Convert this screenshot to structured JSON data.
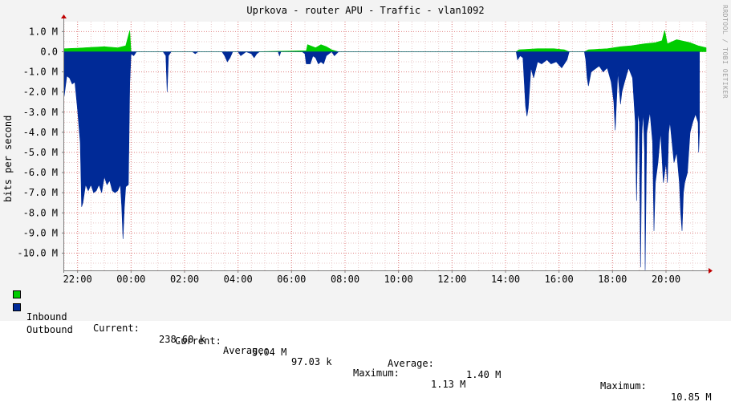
{
  "chart_data": {
    "type": "area",
    "title": "Uprkova - router APU - Traffic - vlan1092",
    "ylabel": "bits per second",
    "watermark": "RRDTOOL / TOBI OETIKER",
    "ylim": [
      -10.85,
      1.5
    ],
    "y_ticks": [
      1.0,
      0.0,
      -1.0,
      -2.0,
      -3.0,
      -4.0,
      -5.0,
      -6.0,
      -7.0,
      -8.0,
      -9.0,
      -10.0
    ],
    "y_tick_labels": [
      "1.0 M",
      "0.0",
      "-1.0 M",
      "-2.0 M",
      "-3.0 M",
      "-4.0 M",
      "-5.0 M",
      "-6.0 M",
      "-7.0 M",
      "-8.0 M",
      "-9.0 M",
      "-10.0 M"
    ],
    "xlim": [
      21.5,
      45.5
    ],
    "x_ticks": [
      22,
      24,
      26,
      28,
      30,
      32,
      34,
      36,
      38,
      40,
      42,
      44
    ],
    "x_tick_labels": [
      "22:00",
      "00:00",
      "02:00",
      "04:00",
      "06:00",
      "08:00",
      "10:00",
      "12:00",
      "14:00",
      "16:00",
      "18:00",
      "20:00"
    ],
    "grid": true,
    "series": [
      {
        "name": "Inbound",
        "color": "#00cc00",
        "points": [
          [
            21.5,
            0.15
          ],
          [
            22.0,
            0.18
          ],
          [
            22.5,
            0.22
          ],
          [
            23.0,
            0.25
          ],
          [
            23.5,
            0.2
          ],
          [
            23.8,
            0.3
          ],
          [
            23.95,
            1.05
          ],
          [
            24.0,
            0.0
          ],
          [
            28.57,
            0.0
          ],
          [
            30.55,
            0.05
          ],
          [
            30.6,
            0.35
          ],
          [
            30.9,
            0.2
          ],
          [
            31.1,
            0.35
          ],
          [
            31.3,
            0.25
          ],
          [
            31.5,
            0.1
          ],
          [
            31.75,
            0.0
          ],
          [
            38.4,
            0.0
          ],
          [
            38.5,
            0.1
          ],
          [
            39.2,
            0.15
          ],
          [
            39.8,
            0.15
          ],
          [
            40.2,
            0.1
          ],
          [
            40.38,
            0.0
          ],
          [
            40.95,
            0.0
          ],
          [
            41.1,
            0.1
          ],
          [
            41.8,
            0.15
          ],
          [
            42.3,
            0.25
          ],
          [
            42.7,
            0.3
          ],
          [
            43.2,
            0.4
          ],
          [
            43.6,
            0.45
          ],
          [
            43.85,
            0.55
          ],
          [
            43.95,
            1.05
          ],
          [
            44.05,
            0.4
          ],
          [
            44.4,
            0.6
          ],
          [
            44.9,
            0.45
          ],
          [
            45.2,
            0.3
          ],
          [
            45.5,
            0.2
          ]
        ]
      },
      {
        "name": "Outbound",
        "color": "#002a97",
        "points": [
          [
            21.5,
            -2.2
          ],
          [
            21.6,
            -1.2
          ],
          [
            21.7,
            -1.3
          ],
          [
            21.8,
            -1.6
          ],
          [
            21.9,
            -1.5
          ],
          [
            22.0,
            -2.9
          ],
          [
            22.1,
            -4.5
          ],
          [
            22.15,
            -7.7
          ],
          [
            22.2,
            -7.5
          ],
          [
            22.3,
            -6.6
          ],
          [
            22.4,
            -6.9
          ],
          [
            22.5,
            -6.6
          ],
          [
            22.6,
            -7.0
          ],
          [
            22.7,
            -6.9
          ],
          [
            22.8,
            -6.6
          ],
          [
            22.9,
            -7.0
          ],
          [
            23.0,
            -6.2
          ],
          [
            23.1,
            -6.6
          ],
          [
            23.2,
            -6.4
          ],
          [
            23.3,
            -6.9
          ],
          [
            23.4,
            -7.0
          ],
          [
            23.5,
            -6.9
          ],
          [
            23.6,
            -6.6
          ],
          [
            23.65,
            -7.7
          ],
          [
            23.7,
            -9.3
          ],
          [
            23.75,
            -7.7
          ],
          [
            23.8,
            -6.7
          ],
          [
            23.9,
            -6.6
          ],
          [
            23.95,
            -1.6
          ],
          [
            24.0,
            -0.1
          ],
          [
            24.1,
            -0.2
          ],
          [
            24.2,
            0.0
          ],
          [
            25.2,
            0.0
          ],
          [
            25.3,
            -0.2
          ],
          [
            25.35,
            -2.0
          ],
          [
            25.4,
            -0.2
          ],
          [
            25.5,
            0.0
          ],
          [
            26.3,
            0.0
          ],
          [
            26.4,
            -0.1
          ],
          [
            26.5,
            0.0
          ],
          [
            27.4,
            0.0
          ],
          [
            27.5,
            -0.2
          ],
          [
            27.6,
            -0.5
          ],
          [
            27.7,
            -0.3
          ],
          [
            27.8,
            0.0
          ],
          [
            28.0,
            0.0
          ],
          [
            28.1,
            -0.2
          ],
          [
            28.2,
            -0.1
          ],
          [
            28.3,
            0.0
          ],
          [
            28.5,
            -0.1
          ],
          [
            28.6,
            -0.3
          ],
          [
            28.7,
            -0.1
          ],
          [
            28.8,
            0.0
          ],
          [
            29.5,
            0.0
          ],
          [
            29.55,
            -0.2
          ],
          [
            29.6,
            0.0
          ],
          [
            30.4,
            0.0
          ],
          [
            30.5,
            -0.1
          ],
          [
            30.55,
            -0.6
          ],
          [
            30.7,
            -0.6
          ],
          [
            30.8,
            -0.2
          ],
          [
            30.9,
            -0.3
          ],
          [
            31.0,
            -0.6
          ],
          [
            31.1,
            -0.5
          ],
          [
            31.2,
            -0.6
          ],
          [
            31.3,
            -0.2
          ],
          [
            31.4,
            -0.1
          ],
          [
            31.5,
            0.0
          ],
          [
            31.55,
            -0.1
          ],
          [
            31.6,
            -0.2
          ],
          [
            31.75,
            0.0
          ],
          [
            38.4,
            0.0
          ],
          [
            38.45,
            -0.4
          ],
          [
            38.55,
            -0.2
          ],
          [
            38.65,
            -0.3
          ],
          [
            38.75,
            -2.7
          ],
          [
            38.8,
            -3.2
          ],
          [
            38.85,
            -2.8
          ],
          [
            38.95,
            -0.8
          ],
          [
            39.05,
            -1.3
          ],
          [
            39.2,
            -0.5
          ],
          [
            39.35,
            -0.6
          ],
          [
            39.55,
            -0.4
          ],
          [
            39.7,
            -0.6
          ],
          [
            39.9,
            -0.5
          ],
          [
            40.1,
            -0.8
          ],
          [
            40.3,
            -0.4
          ],
          [
            40.38,
            0.0
          ],
          [
            40.95,
            0.0
          ],
          [
            41.0,
            -0.4
          ],
          [
            41.05,
            -1.3
          ],
          [
            41.1,
            -1.7
          ],
          [
            41.2,
            -1.0
          ],
          [
            41.3,
            -0.9
          ],
          [
            41.5,
            -0.7
          ],
          [
            41.65,
            -1.0
          ],
          [
            41.8,
            -0.8
          ],
          [
            41.95,
            -1.5
          ],
          [
            42.05,
            -2.5
          ],
          [
            42.1,
            -3.9
          ],
          [
            42.2,
            -1.0
          ],
          [
            42.3,
            -2.6
          ],
          [
            42.35,
            -2.0
          ],
          [
            42.45,
            -1.5
          ],
          [
            42.6,
            -0.8
          ],
          [
            42.75,
            -1.3
          ],
          [
            42.85,
            -3.5
          ],
          [
            42.9,
            -7.4
          ],
          [
            42.95,
            -3.0
          ],
          [
            43.0,
            -3.5
          ],
          [
            43.05,
            -10.7
          ],
          [
            43.1,
            -4.0
          ],
          [
            43.15,
            -3.0
          ],
          [
            43.2,
            -5.0
          ],
          [
            43.22,
            -10.85
          ],
          [
            43.28,
            -4.0
          ],
          [
            43.4,
            -3.0
          ],
          [
            43.5,
            -4.5
          ],
          [
            43.55,
            -8.9
          ],
          [
            43.6,
            -6.5
          ],
          [
            43.7,
            -5.5
          ],
          [
            43.8,
            -4.0
          ],
          [
            43.9,
            -6.5
          ],
          [
            44.0,
            -5.5
          ],
          [
            44.05,
            -6.5
          ],
          [
            44.1,
            -4.0
          ],
          [
            44.15,
            -3.5
          ],
          [
            44.3,
            -5.5
          ],
          [
            44.4,
            -5.0
          ],
          [
            44.5,
            -6.5
          ],
          [
            44.55,
            -8.0
          ],
          [
            44.6,
            -8.9
          ],
          [
            44.65,
            -7.0
          ],
          [
            44.7,
            -6.5
          ],
          [
            44.8,
            -6.0
          ],
          [
            44.9,
            -4.0
          ],
          [
            45.0,
            -3.5
          ],
          [
            45.1,
            -3.1
          ],
          [
            45.2,
            -3.5
          ],
          [
            45.22,
            -5.0
          ],
          [
            45.25,
            -4.0
          ]
        ]
      }
    ]
  },
  "legend": {
    "inbound": {
      "name": "Inbound",
      "current_label": "Current:",
      "current": "238.60 k",
      "average_label": "Average:",
      "average": "97.03 k",
      "maximum_label": "Maximum:",
      "maximum": "1.13 M"
    },
    "outbound": {
      "name": "Outbound",
      "current_label": "Current:",
      "current": "5.04 M",
      "average_label": "Average:",
      "average": "1.40 M",
      "maximum_label": "Maximum:",
      "maximum": "10.85 M"
    }
  }
}
